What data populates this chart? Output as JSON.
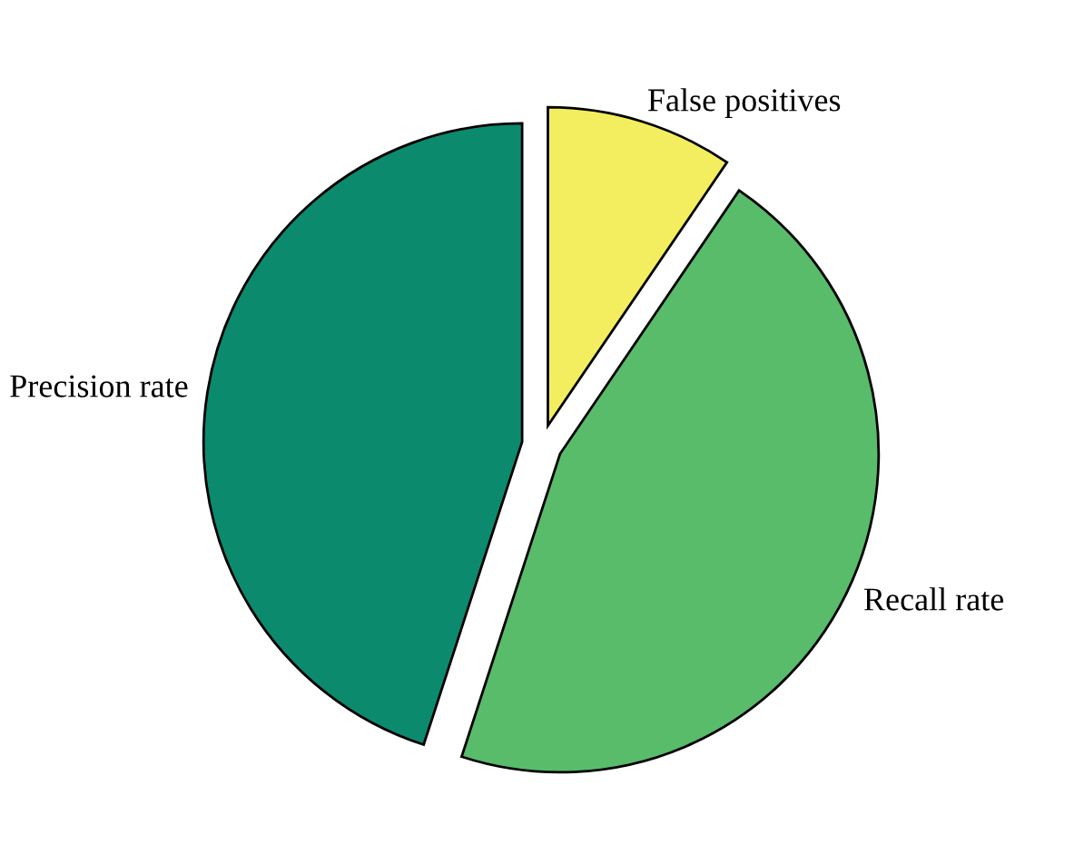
{
  "chart_data": {
    "type": "pie",
    "categories": [
      "False positives",
      "Recall rate",
      "Precision rate"
    ],
    "values": [
      9.5,
      45.5,
      45
    ],
    "colors": [
      "#f3ee5f",
      "#58bc6b",
      "#0c8a6e"
    ]
  }
}
